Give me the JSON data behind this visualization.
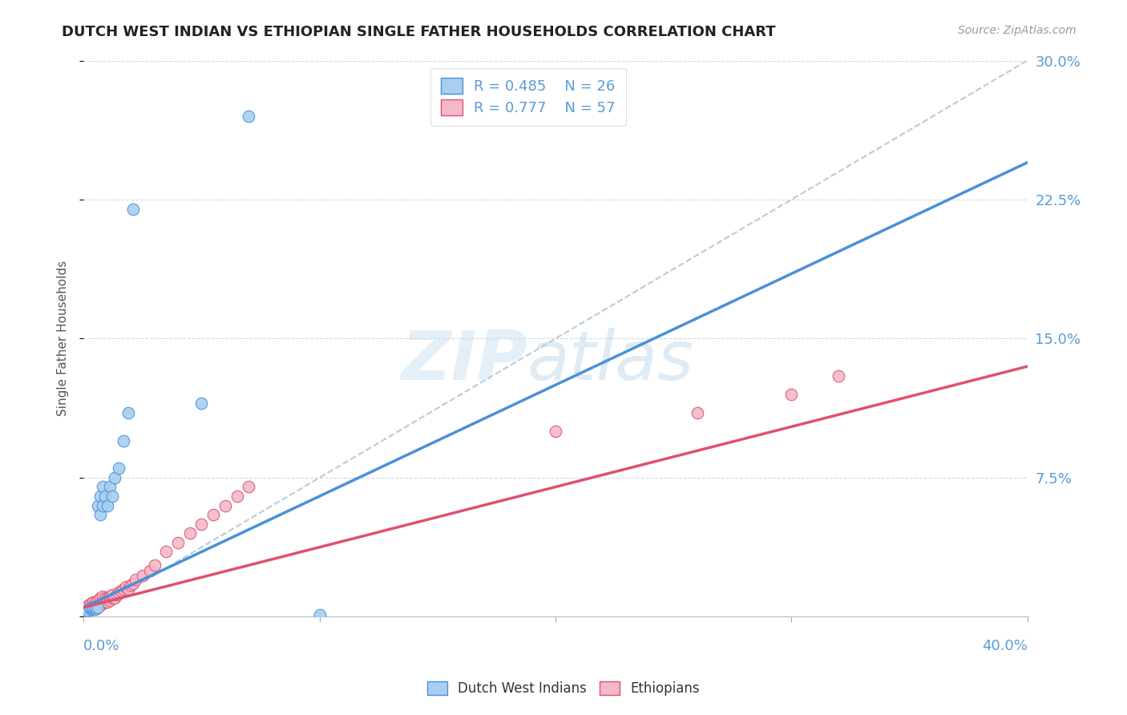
{
  "title": "DUTCH WEST INDIAN VS ETHIOPIAN SINGLE FATHER HOUSEHOLDS CORRELATION CHART",
  "source": "Source: ZipAtlas.com",
  "ylabel": "Single Father Households",
  "ytick_labels": [
    "",
    "7.5%",
    "15.0%",
    "22.5%",
    "30.0%"
  ],
  "ytick_values": [
    0,
    0.075,
    0.15,
    0.225,
    0.3
  ],
  "xlim": [
    0,
    0.4
  ],
  "ylim": [
    0,
    0.3
  ],
  "color_blue": "#a8cef0",
  "color_pink": "#f5b8c8",
  "trendline_blue_color": "#4a90d9",
  "trendline_pink_color": "#e05070",
  "trendline_dashed_color": "#b8ccd8",
  "watermark_zip": "ZIP",
  "watermark_atlas": "atlas",
  "dutch_x": [
    0.001,
    0.002,
    0.003,
    0.003,
    0.004,
    0.004,
    0.005,
    0.005,
    0.006,
    0.006,
    0.007,
    0.007,
    0.008,
    0.008,
    0.009,
    0.01,
    0.011,
    0.012,
    0.013,
    0.015,
    0.017,
    0.019,
    0.021,
    0.05,
    0.07,
    0.1
  ],
  "dutch_y": [
    0.003,
    0.003,
    0.004,
    0.005,
    0.004,
    0.005,
    0.004,
    0.005,
    0.005,
    0.06,
    0.055,
    0.065,
    0.06,
    0.07,
    0.065,
    0.06,
    0.07,
    0.065,
    0.075,
    0.08,
    0.095,
    0.11,
    0.22,
    0.115,
    0.27,
    0.001
  ],
  "ethiopian_x": [
    0.0,
    0.001,
    0.001,
    0.002,
    0.002,
    0.002,
    0.003,
    0.003,
    0.003,
    0.004,
    0.004,
    0.004,
    0.005,
    0.005,
    0.005,
    0.006,
    0.006,
    0.006,
    0.007,
    0.007,
    0.007,
    0.008,
    0.008,
    0.008,
    0.009,
    0.009,
    0.01,
    0.01,
    0.011,
    0.011,
    0.012,
    0.012,
    0.013,
    0.014,
    0.015,
    0.016,
    0.017,
    0.018,
    0.019,
    0.02,
    0.021,
    0.022,
    0.025,
    0.028,
    0.03,
    0.035,
    0.04,
    0.045,
    0.05,
    0.055,
    0.06,
    0.065,
    0.07,
    0.2,
    0.26,
    0.3,
    0.32
  ],
  "ethiopian_y": [
    0.003,
    0.003,
    0.005,
    0.004,
    0.005,
    0.006,
    0.004,
    0.005,
    0.007,
    0.005,
    0.006,
    0.008,
    0.005,
    0.006,
    0.008,
    0.006,
    0.007,
    0.009,
    0.006,
    0.008,
    0.01,
    0.007,
    0.009,
    0.011,
    0.008,
    0.01,
    0.008,
    0.01,
    0.009,
    0.011,
    0.01,
    0.012,
    0.01,
    0.012,
    0.013,
    0.014,
    0.015,
    0.016,
    0.015,
    0.017,
    0.018,
    0.02,
    0.022,
    0.025,
    0.028,
    0.035,
    0.04,
    0.045,
    0.05,
    0.055,
    0.06,
    0.065,
    0.07,
    0.1,
    0.11,
    0.12,
    0.13
  ],
  "blue_trend_x": [
    0.0,
    0.4
  ],
  "blue_trend_y": [
    0.005,
    0.245
  ],
  "pink_trend_x": [
    0.0,
    0.4
  ],
  "pink_trend_y": [
    0.005,
    0.135
  ],
  "dash_line_x": [
    0.0,
    0.4
  ],
  "dash_line_y": [
    0.0,
    0.3
  ]
}
